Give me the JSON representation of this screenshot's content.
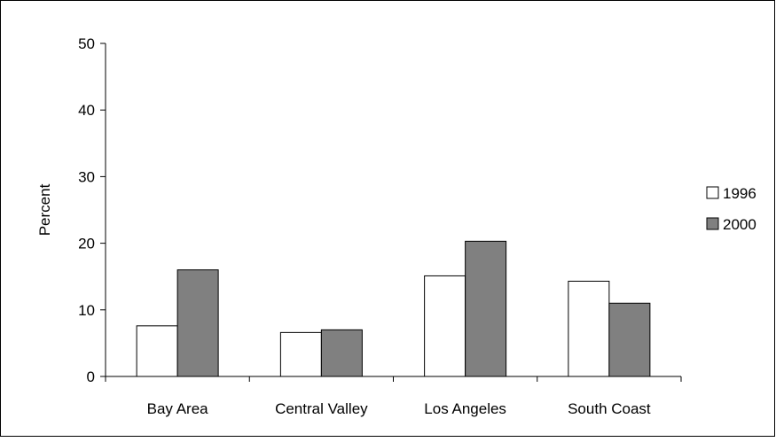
{
  "chart_data": {
    "type": "bar",
    "categories": [
      "Bay Area",
      "Central Valley",
      "Los Angeles",
      "South Coast"
    ],
    "series": [
      {
        "name": "1996",
        "values": [
          7.6,
          6.6,
          15.1,
          14.3
        ],
        "color": "#ffffff"
      },
      {
        "name": "2000",
        "values": [
          16.0,
          7.0,
          20.3,
          11.0
        ],
        "color": "#808080"
      }
    ],
    "xlabel": "",
    "ylabel": "Percent",
    "ylim": [
      0,
      50
    ],
    "yticks": [
      "0",
      "10",
      "20",
      "30",
      "40",
      "50"
    ],
    "grid": false,
    "legend_position": "right"
  }
}
